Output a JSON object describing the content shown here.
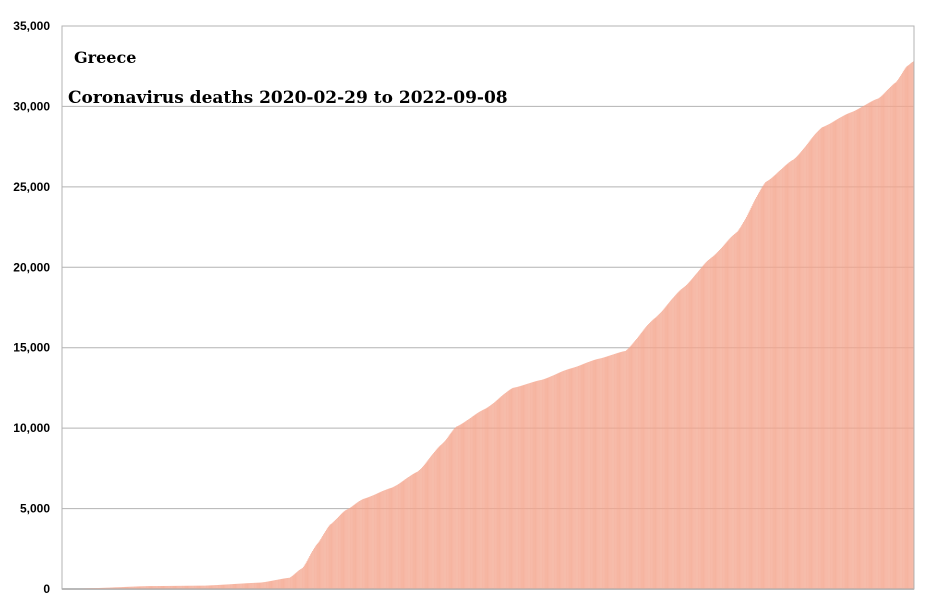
{
  "chart_data": {
    "type": "bar",
    "title": "Greece",
    "subtitle": "Coronavirus deaths 2020-02-29 to 2022-09-08",
    "xlabel": "",
    "ylabel": "",
    "ylim": [
      0,
      35000
    ],
    "yticks": [
      0,
      5000,
      10000,
      15000,
      20000,
      25000,
      30000,
      35000
    ],
    "ytick_labels": [
      "0",
      "5,000",
      "10,000",
      "15,000",
      "20,000",
      "25,000",
      "30,000",
      "35,000"
    ],
    "grid": true,
    "x_start": "2020-02-29",
    "x_end": "2022-09-08",
    "series": [
      {
        "color": "#f4a58d",
        "points": [
          [
            "2020-02-29",
            0
          ],
          [
            "2020-04-01",
            50
          ],
          [
            "2020-06-01",
            180
          ],
          [
            "2020-08-01",
            210
          ],
          [
            "2020-10-01",
            400
          ],
          [
            "2020-11-01",
            700
          ],
          [
            "2020-11-15",
            1300
          ],
          [
            "2020-12-01",
            2800
          ],
          [
            "2020-12-15",
            4000
          ],
          [
            "2021-01-01",
            4900
          ],
          [
            "2021-01-20",
            5600
          ],
          [
            "2021-02-20",
            6300
          ],
          [
            "2021-03-20",
            7300
          ],
          [
            "2021-04-15",
            9000
          ],
          [
            "2021-05-01",
            10100
          ],
          [
            "2021-06-01",
            11200
          ],
          [
            "2021-07-01",
            12500
          ],
          [
            "2021-08-01",
            13000
          ],
          [
            "2021-09-01",
            13700
          ],
          [
            "2021-10-01",
            14300
          ],
          [
            "2021-10-31",
            14800
          ],
          [
            "2021-12-01",
            16800
          ],
          [
            "2022-01-01",
            18700
          ],
          [
            "2022-02-01",
            20600
          ],
          [
            "2022-03-01",
            22200
          ],
          [
            "2022-04-01",
            25300
          ],
          [
            "2022-05-01",
            26700
          ],
          [
            "2022-06-01",
            28700
          ],
          [
            "2022-07-01",
            29600
          ],
          [
            "2022-08-01",
            30500
          ],
          [
            "2022-08-20",
            31500
          ],
          [
            "2022-09-01",
            32500
          ],
          [
            "2022-09-08",
            32800
          ]
        ]
      }
    ]
  }
}
